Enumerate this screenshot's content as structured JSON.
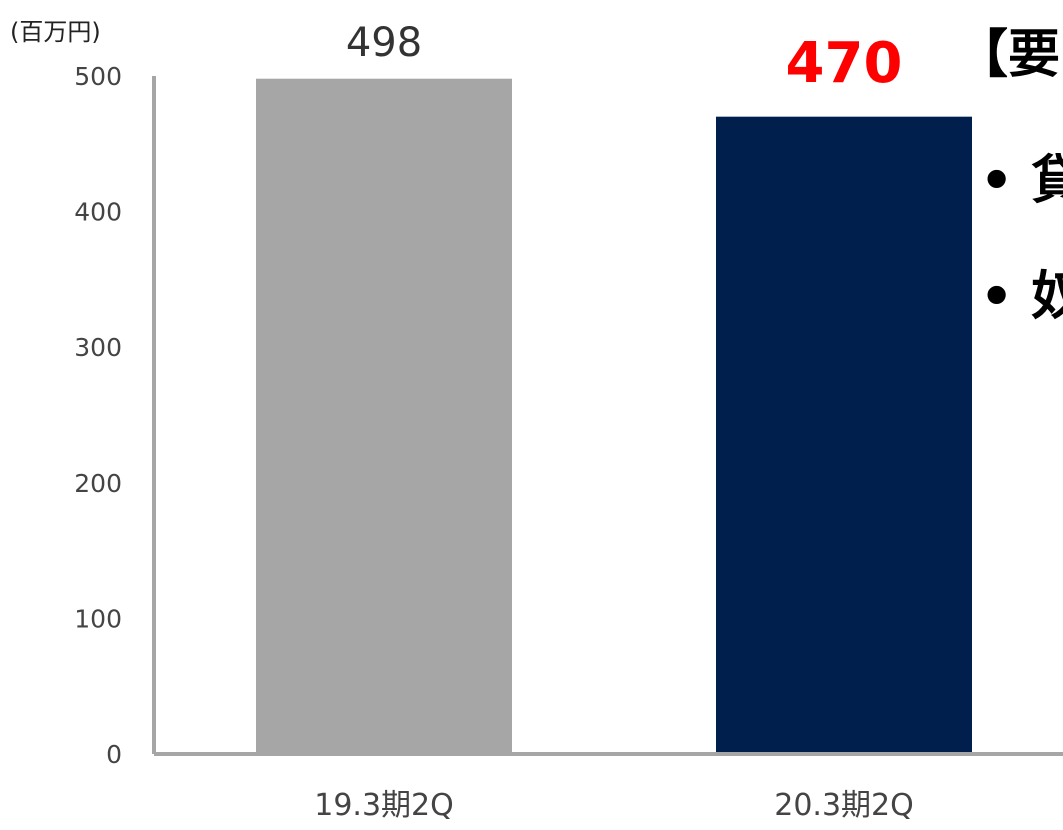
{
  "chart_data": {
    "type": "bar",
    "unit_label": "(百万円)",
    "categories": [
      "19.3期2Q",
      "20.3期2Q"
    ],
    "values": [
      498,
      470
    ],
    "data_labels": [
      "498",
      "470"
    ],
    "highlight_index": 1,
    "ylim": [
      0,
      500
    ],
    "yticks": [
      0,
      100,
      200,
      300,
      400,
      500
    ],
    "grid": false,
    "colors": {
      "bars": [
        "#a6a6a6",
        "#001f4d"
      ],
      "axis": "#a6a6a6",
      "highlight_label": "#ff0000"
    }
  },
  "side_text": {
    "heading": "【要",
    "bullets": [
      "• 貸",
      "• 奴"
    ]
  }
}
